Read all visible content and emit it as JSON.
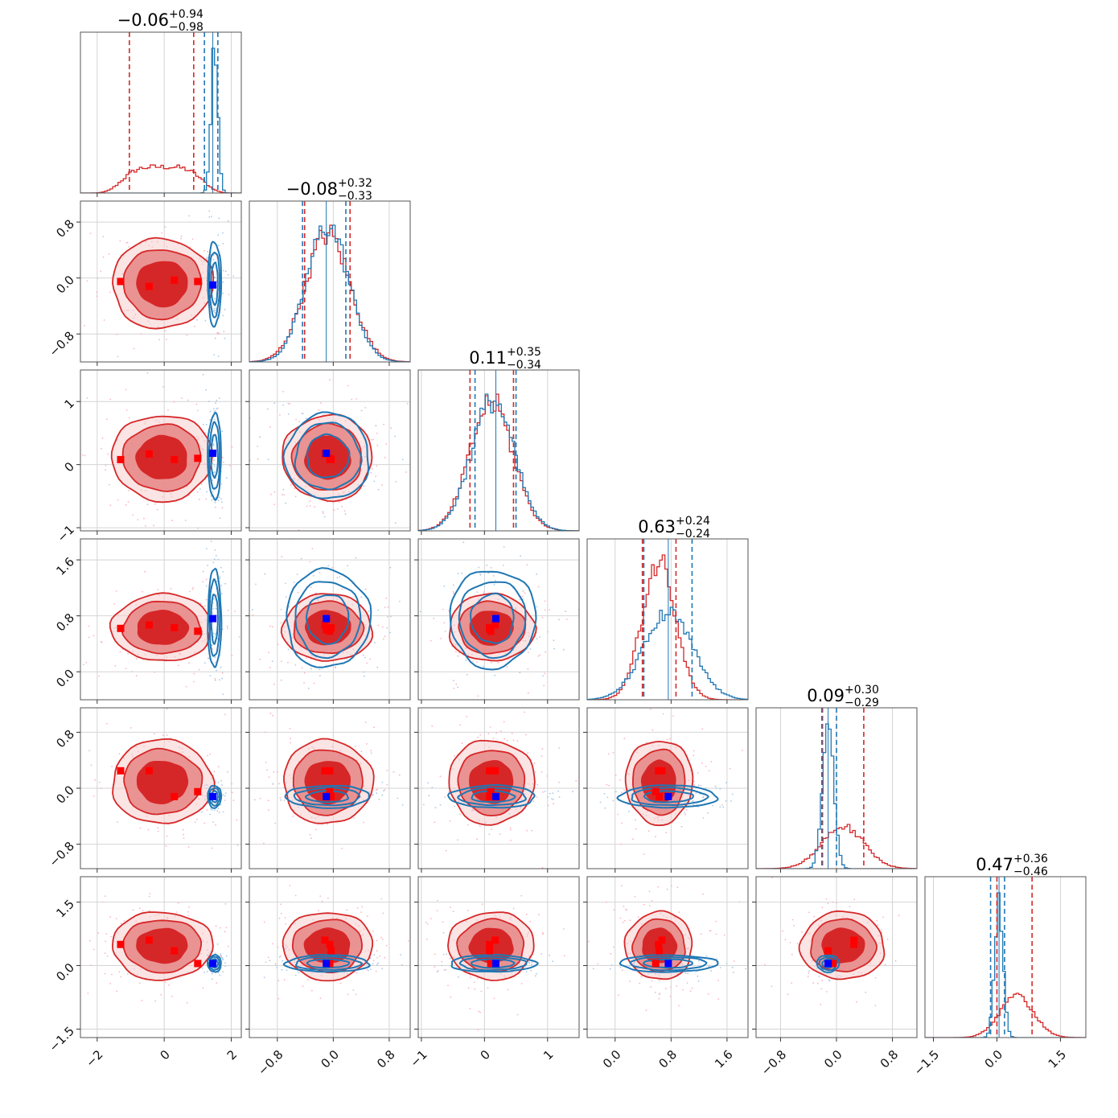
{
  "figure": {
    "type": "corner-plot"
  },
  "colors": {
    "red": "#d62728",
    "red_mid": "#e8898a",
    "red_light": "#f6c9ca",
    "blue": "#1f77b4",
    "marker_red": "#ff0000",
    "marker_blue": "#0000ff"
  },
  "chart_data": {
    "type": "corner",
    "parameters": [
      {
        "title_value": "−0.06",
        "title_plus": "+0.94",
        "title_minus": "−0.98",
        "range": [
          -2.5,
          2.3
        ],
        "ticks": [
          -2,
          0,
          2
        ],
        "tick_labels": [
          "−2",
          "0",
          "2"
        ],
        "red": {
          "mean": -0.06,
          "sd": 0.96,
          "q16": -1.04,
          "q84": 0.88,
          "shape": "flat"
        },
        "blue": {
          "mean": 1.5,
          "sd": 0.1,
          "q16": 1.2,
          "q84": 1.6
        },
        "truths": [
          1.45
        ],
        "red_markers": [
          -1.3,
          -0.45,
          0.3,
          1.0
        ]
      },
      {
        "title_value": "−0.08",
        "title_plus": "+0.32",
        "title_minus": "−0.33",
        "range": [
          -1.2,
          1.1
        ],
        "ticks": [
          -0.8,
          0.0,
          0.8
        ],
        "tick_labels": [
          "−0.8",
          "0.0",
          "0.8"
        ],
        "red": {
          "mean": -0.08,
          "sd": 0.32,
          "q16": -0.41,
          "q84": 0.24
        },
        "blue": {
          "mean": -0.08,
          "sd": 0.3,
          "q16": -0.44,
          "q84": 0.18
        },
        "truths": [
          -0.1
        ],
        "red_markers": [
          -0.05,
          -0.12,
          -0.03,
          -0.05,
          -0.1
        ]
      },
      {
        "title_value": "0.11",
        "title_plus": "+0.35",
        "title_minus": "−0.34",
        "range": [
          -1.05,
          1.5
        ],
        "ticks": [
          -1,
          0,
          1
        ],
        "tick_labels": [
          "−1",
          "0",
          "1"
        ],
        "red": {
          "mean": 0.11,
          "sd": 0.34,
          "q16": -0.23,
          "q84": 0.46
        },
        "blue": {
          "mean": 0.13,
          "sd": 0.34,
          "q16": -0.15,
          "q84": 0.5
        },
        "truths": [
          0.18
        ],
        "red_markers": [
          0.08,
          0.17,
          0.08,
          0.1
        ]
      },
      {
        "title_value": "0.63",
        "title_plus": "+0.24",
        "title_minus": "−0.24",
        "range": [
          -0.4,
          1.9
        ],
        "ticks": [
          0.0,
          0.8,
          1.6
        ],
        "tick_labels": [
          "0.0",
          "0.8",
          "1.6"
        ],
        "red": {
          "mean": 0.63,
          "sd": 0.24,
          "q16": 0.39,
          "q84": 0.87
        },
        "blue": {
          "mean": 0.76,
          "sd": 0.35,
          "q16": 0.41,
          "q84": 1.1
        },
        "truths": [
          0.76
        ],
        "red_markers": [
          0.62,
          0.67,
          0.63,
          0.58,
          0.6
        ]
      },
      {
        "title_value": "0.09",
        "title_plus": "+0.30",
        "title_minus": "−0.29",
        "range": [
          -1.15,
          1.15
        ],
        "ticks": [
          -0.8,
          0.0,
          0.8
        ],
        "tick_labels": [
          "−0.8",
          "0.0",
          "0.8"
        ],
        "red": {
          "mean": 0.09,
          "sd": 0.3,
          "q16": -0.2,
          "q84": 0.39
        },
        "blue": {
          "mean": -0.12,
          "sd": 0.08,
          "q16": -0.21,
          "q84": 0.0
        },
        "truths": [
          -0.12
        ],
        "red_markers": [
          0.25,
          0.25,
          -0.12,
          -0.05
        ]
      },
      {
        "title_value": "0.47",
        "title_plus": "+0.36",
        "title_minus": "−0.46",
        "range": [
          -1.7,
          2.1
        ],
        "ticks": [
          -1.5,
          0.0,
          1.5
        ],
        "tick_labels": [
          "−1.5",
          "0.0",
          "1.5"
        ],
        "red": {
          "mean": 0.47,
          "sd": 0.4,
          "q16": 0.0,
          "q84": 0.83
        },
        "blue": {
          "mean": 0.05,
          "sd": 0.1,
          "q16": -0.15,
          "q84": 0.18
        },
        "truths": [
          0.05
        ],
        "red_markers": [
          0.5,
          0.6,
          0.35,
          0.05
        ]
      }
    ],
    "truth_marker": "blue square",
    "red_marker": "red square",
    "contour_levels": [
      "0.5",
      "1",
      "1.5",
      "2"
    ]
  }
}
